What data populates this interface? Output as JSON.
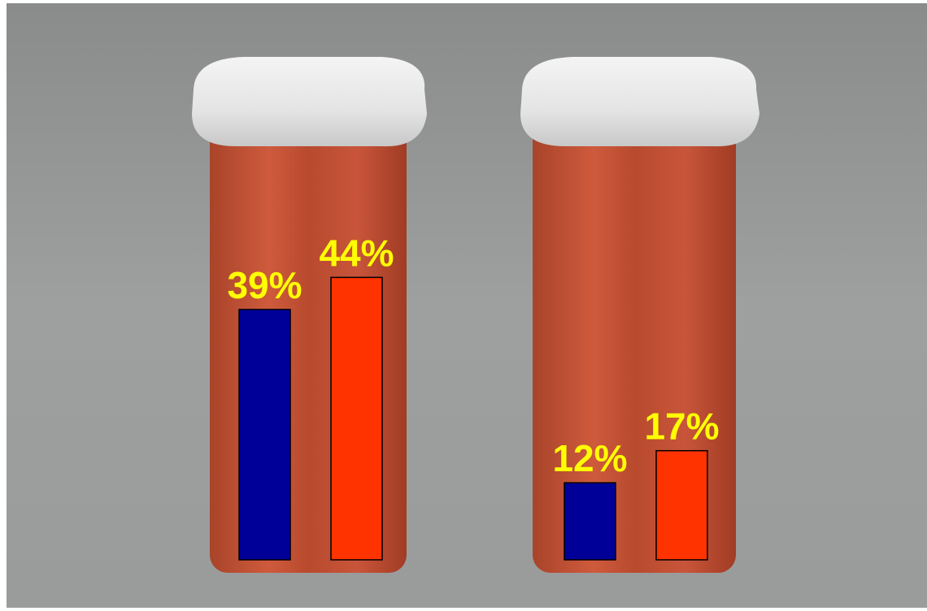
{
  "chart_data": {
    "type": "bar",
    "categories": [
      null,
      null
    ],
    "series": [
      {
        "color": "#000099",
        "values": [
          39,
          12
        ],
        "value_labels": [
          "39%",
          "12%"
        ]
      },
      {
        "color": "#ff3300",
        "values": [
          44,
          17
        ],
        "value_labels": [
          "44%",
          "17%"
        ]
      }
    ]
  }
}
